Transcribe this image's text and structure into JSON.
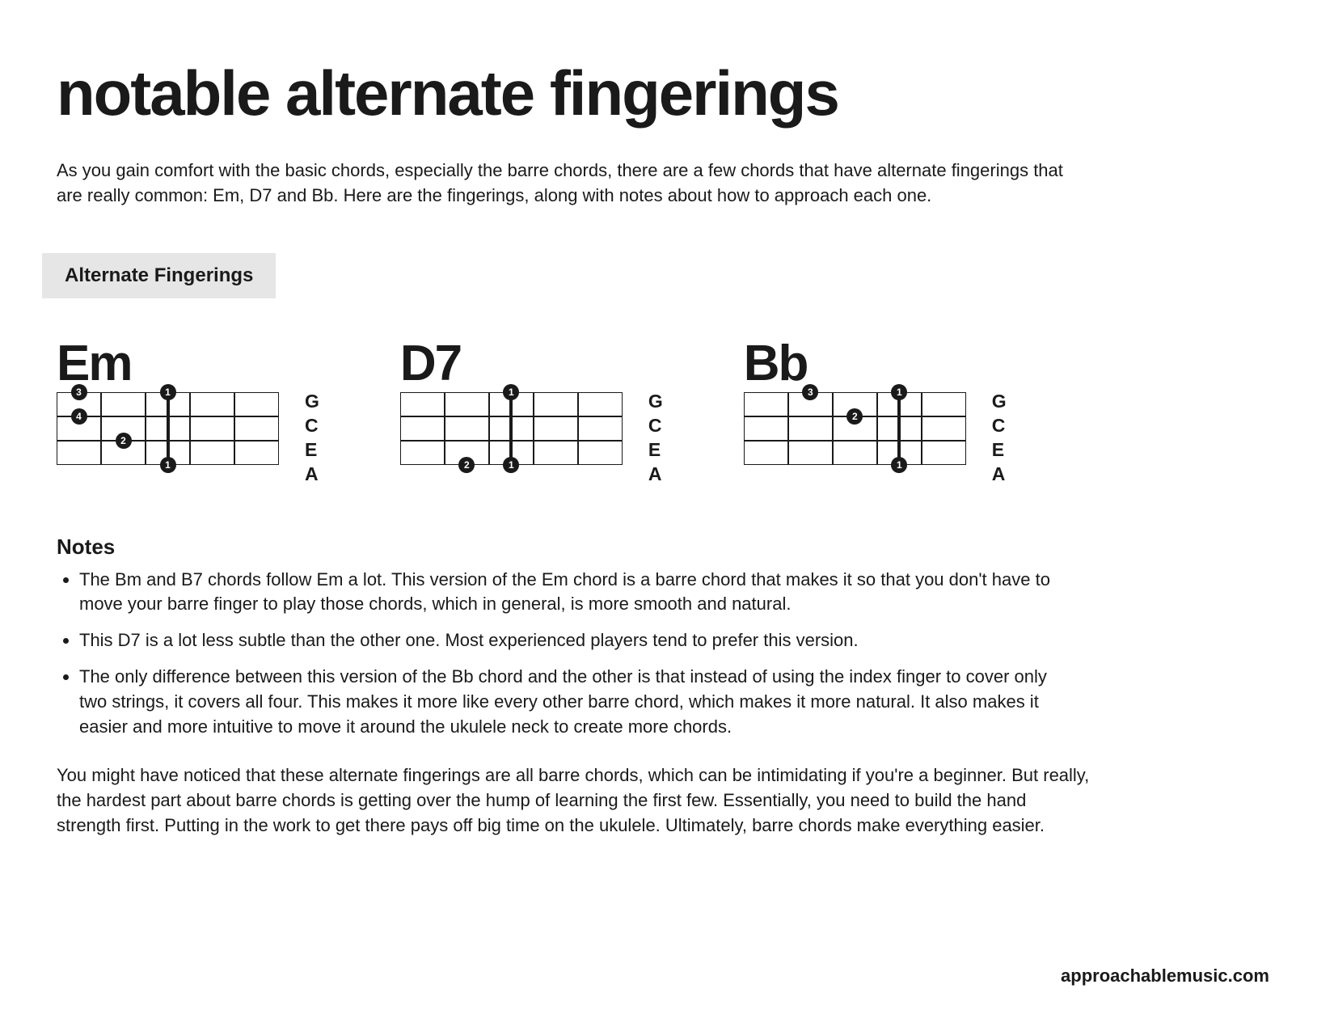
{
  "title": "notable alternate fingerings",
  "intro": "As you gain comfort with the basic chords, especially the barre chords, there are a few chords that have alternate fingerings that are really common: Em, D7 and Bb. Here are the fingerings, along with notes about how to approach each one.",
  "section_label": "Alternate Fingerings",
  "strings": [
    "G",
    "C",
    "E",
    "A"
  ],
  "diagram": {
    "num_frets": 5,
    "num_strings": 4,
    "fret_width": 55,
    "string_spacing": 30,
    "dot_diameter": 20,
    "grid_color": "#1a1a1a",
    "dot_bg": "#1a1a1a",
    "dot_text": "#ffffff"
  },
  "chords": [
    {
      "name": "Em",
      "barre": {
        "fret": 2,
        "from_string": 0,
        "to_string": 3
      },
      "fingers": [
        {
          "fret": 0,
          "string": 0,
          "label": "3"
        },
        {
          "fret": 0,
          "string": 1,
          "label": "4"
        },
        {
          "fret": 1,
          "string": 2,
          "label": "2"
        },
        {
          "fret": 2,
          "string": 0,
          "label": "1"
        },
        {
          "fret": 2,
          "string": 3,
          "label": "1"
        }
      ]
    },
    {
      "name": "D7",
      "barre": {
        "fret": 2,
        "from_string": 0,
        "to_string": 3
      },
      "fingers": [
        {
          "fret": 2,
          "string": 0,
          "label": "1"
        },
        {
          "fret": 1,
          "string": 3,
          "label": "2"
        },
        {
          "fret": 2,
          "string": 3,
          "label": "1"
        }
      ]
    },
    {
      "name": "Bb",
      "barre": {
        "fret": 3,
        "from_string": 0,
        "to_string": 3
      },
      "fingers": [
        {
          "fret": 1,
          "string": 0,
          "label": "3"
        },
        {
          "fret": 2,
          "string": 1,
          "label": "2"
        },
        {
          "fret": 3,
          "string": 0,
          "label": "1"
        },
        {
          "fret": 3,
          "string": 3,
          "label": "1"
        }
      ]
    }
  ],
  "notes_heading": "Notes",
  "notes": [
    "The Bm and B7 chords follow Em a lot. This version of the Em chord is a barre chord that makes it so that you don't have to move your barre finger to play those chords, which in general, is more smooth and natural.",
    "This D7 is a lot less subtle than the other one. Most experienced players tend to prefer this version.",
    "The only difference between this version of the Bb chord and the other is that instead of using the index finger to cover only two strings, it covers all four. This makes it more like every other barre chord, which makes it more natural. It also makes it easier and more intuitive to move it around the ukulele neck to create more chords."
  ],
  "closing": "You might have noticed that these alternate fingerings are all barre chords, which can be intimidating if you're a beginner. But really, the hardest part about barre chords is getting over the hump of learning the first few. Essentially, you need to build the hand strength first. Putting in the work to get there pays off big time on the ukulele. Ultimately, barre chords make everything easier.",
  "footer": "approachablemusic.com"
}
